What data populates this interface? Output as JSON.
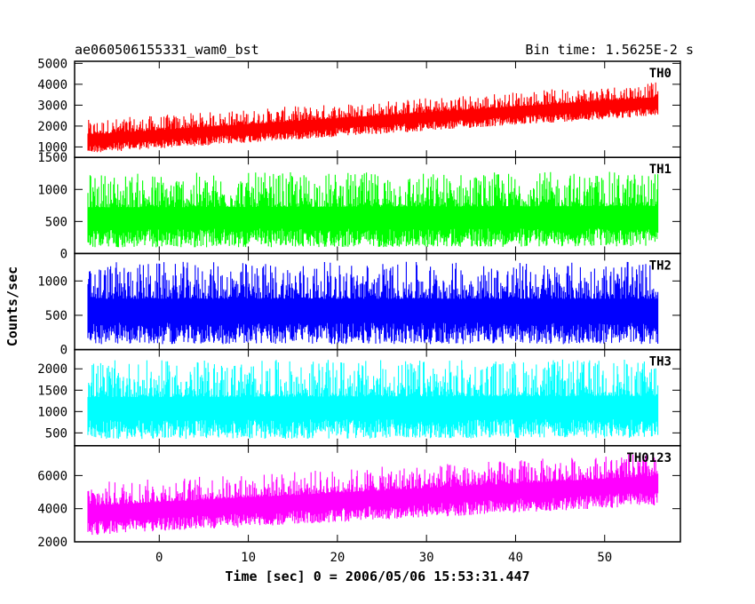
{
  "header": {
    "title": "ae060506155331_wam0_bst",
    "bin_time": "Bin time: 1.5625E-2 s"
  },
  "chart_data": {
    "type": "line",
    "title": "ae060506155331_wam0_bst",
    "xlabel": "Time [sec] 0 = 2006/05/06 15:53:31.447",
    "ylabel": "Counts/sec",
    "xlim": [
      -9.5,
      58.5
    ],
    "xticks": [
      0,
      10,
      20,
      30,
      40,
      50
    ],
    "x_range_of_data": [
      -8,
      56
    ],
    "grid": false,
    "legend": "none",
    "panels": [
      {
        "name": "TH0",
        "color": "#ff0000",
        "ylim": [
          500,
          5100
        ],
        "yticks": [
          1000,
          2000,
          3000,
          4000,
          5000
        ],
        "mean_start": 1350,
        "mean_end": 3150,
        "spread_low": 650,
        "spread_high": 950
      },
      {
        "name": "TH1",
        "color": "#00ff00",
        "ylim": [
          0,
          1500
        ],
        "yticks": [
          0,
          500,
          1000,
          1500
        ],
        "mean_start": 540,
        "mean_end": 560,
        "spread_low": 450,
        "spread_high": 720
      },
      {
        "name": "TH2",
        "color": "#0000ff",
        "ylim": [
          0,
          1400
        ],
        "yticks": [
          0,
          500,
          1000
        ],
        "mean_start": 560,
        "mean_end": 560,
        "spread_low": 480,
        "spread_high": 720
      },
      {
        "name": "TH3",
        "color": "#00ffff",
        "ylim": [
          200,
          2450
        ],
        "yticks": [
          500,
          1000,
          1500,
          2000
        ],
        "mean_start": 1050,
        "mean_end": 1080,
        "spread_low": 700,
        "spread_high": 1150
      },
      {
        "name": "TH0123",
        "color": "#ff00ff",
        "ylim": [
          2000,
          7800
        ],
        "yticks": [
          2000,
          4000,
          6000
        ],
        "mean_start": 3700,
        "mean_end": 5500,
        "spread_low": 1300,
        "spread_high": 1900
      }
    ]
  }
}
